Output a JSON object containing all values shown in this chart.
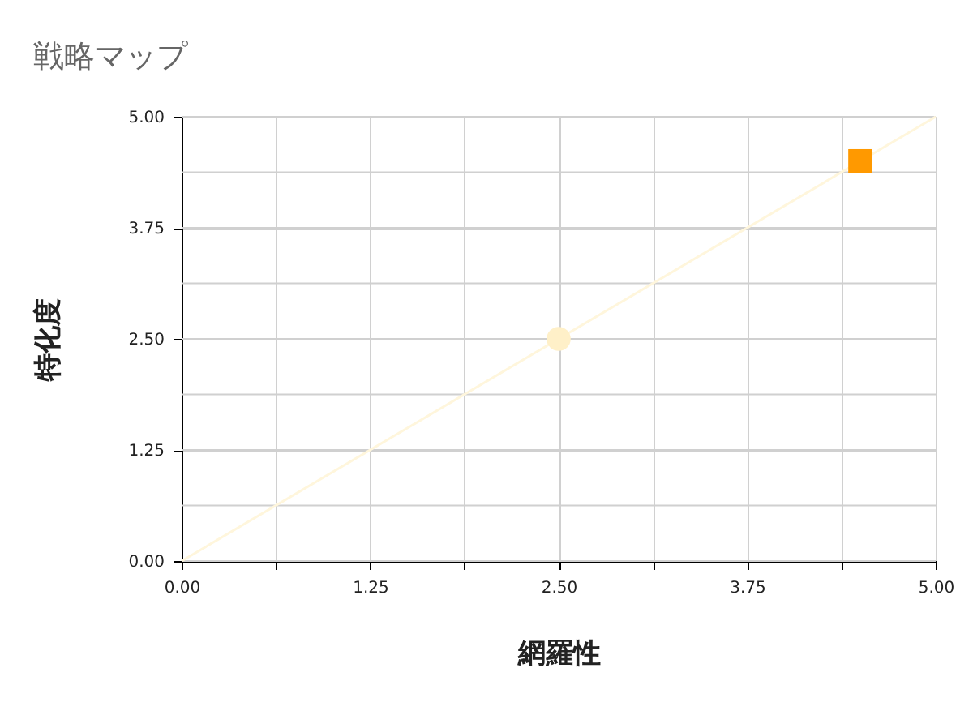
{
  "chart_data": {
    "type": "scatter",
    "title": "戦略マップ",
    "xlabel": "網羅性",
    "ylabel": "特化度",
    "xlim": [
      0,
      5
    ],
    "ylim": [
      0,
      5
    ],
    "xticks": [
      {
        "value": 0,
        "label": "0.00"
      },
      {
        "value": 0.625,
        "label": null
      },
      {
        "value": 1.25,
        "label": "1.25"
      },
      {
        "value": 1.875,
        "label": null
      },
      {
        "value": 2.5,
        "label": "2.50"
      },
      {
        "value": 3.125,
        "label": null
      },
      {
        "value": 3.75,
        "label": "3.75"
      },
      {
        "value": 4.375,
        "label": null
      },
      {
        "value": 5,
        "label": "5.00"
      }
    ],
    "yticks": [
      {
        "value": 0,
        "label": "0.00"
      },
      {
        "value": 0.625,
        "label": null
      },
      {
        "value": 1.25,
        "label": "1.25"
      },
      {
        "value": 1.875,
        "label": null
      },
      {
        "value": 2.5,
        "label": "2.50"
      },
      {
        "value": 3.125,
        "label": null
      },
      {
        "value": 3.75,
        "label": "3.75"
      },
      {
        "value": 4.375,
        "label": null
      },
      {
        "value": 5,
        "label": "5.00"
      }
    ],
    "grid": true,
    "series": [
      {
        "type": "line",
        "color": "#fff6dc",
        "x": [
          0,
          5
        ],
        "values": [
          0,
          5
        ]
      },
      {
        "type": "scatter",
        "marker": "circle",
        "color": "#fff0c8",
        "x": [
          2.5
        ],
        "values": [
          2.5
        ]
      },
      {
        "type": "scatter",
        "marker": "square",
        "color": "#ff9900",
        "x": [
          4.5
        ],
        "values": [
          4.5
        ]
      }
    ]
  }
}
